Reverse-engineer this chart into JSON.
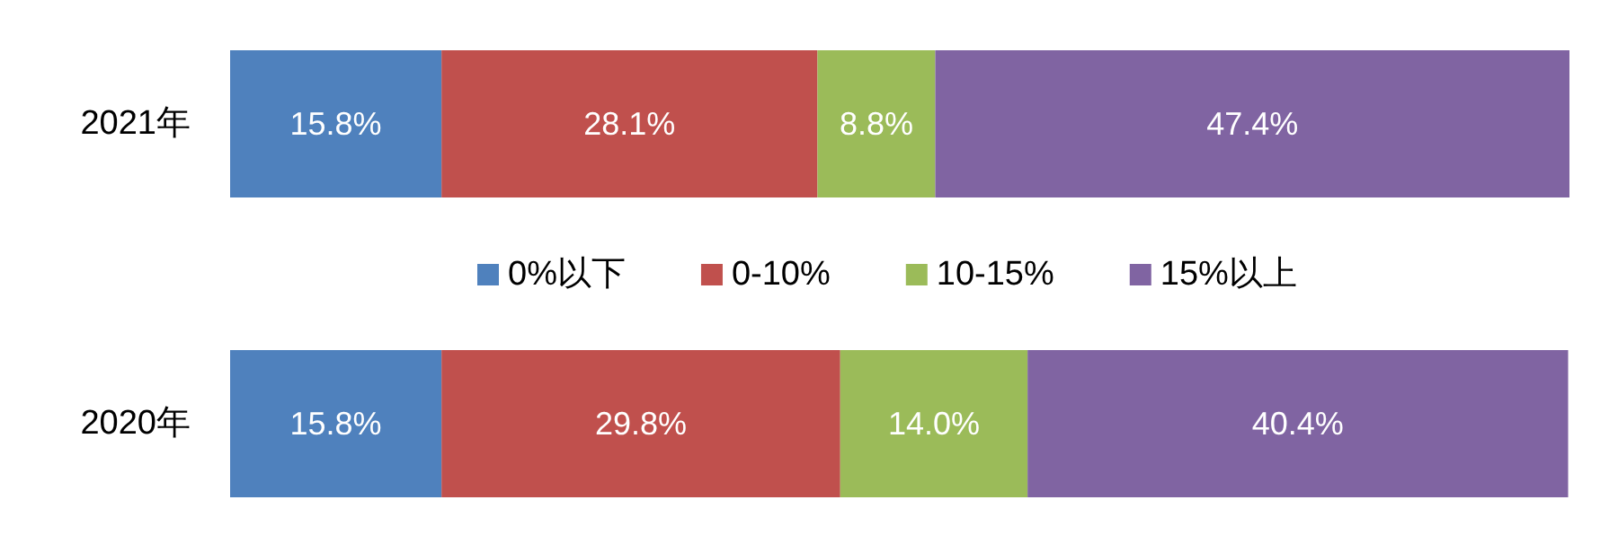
{
  "chart_data": {
    "type": "bar",
    "orientation": "horizontal",
    "stacked": true,
    "legend": "center",
    "categories": [
      "2021年",
      "2020年"
    ],
    "series": [
      {
        "name": "0%以下",
        "color": "#4f81bd",
        "values": [
          15.8,
          15.8
        ],
        "value_labels": [
          "15.8%",
          "15.8%"
        ]
      },
      {
        "name": "0-10%",
        "color": "#c0504d",
        "values": [
          28.1,
          29.8
        ],
        "value_labels": [
          "28.1%",
          "29.8%"
        ]
      },
      {
        "name": "10-15%",
        "color": "#9bbb59",
        "values": [
          8.8,
          14.0
        ],
        "value_labels": [
          "8.8%",
          "14.0%"
        ]
      },
      {
        "name": "15%以上",
        "color": "#8064a2",
        "values": [
          47.4,
          40.4
        ],
        "value_labels": [
          "47.4%",
          "40.4%"
        ]
      }
    ]
  }
}
